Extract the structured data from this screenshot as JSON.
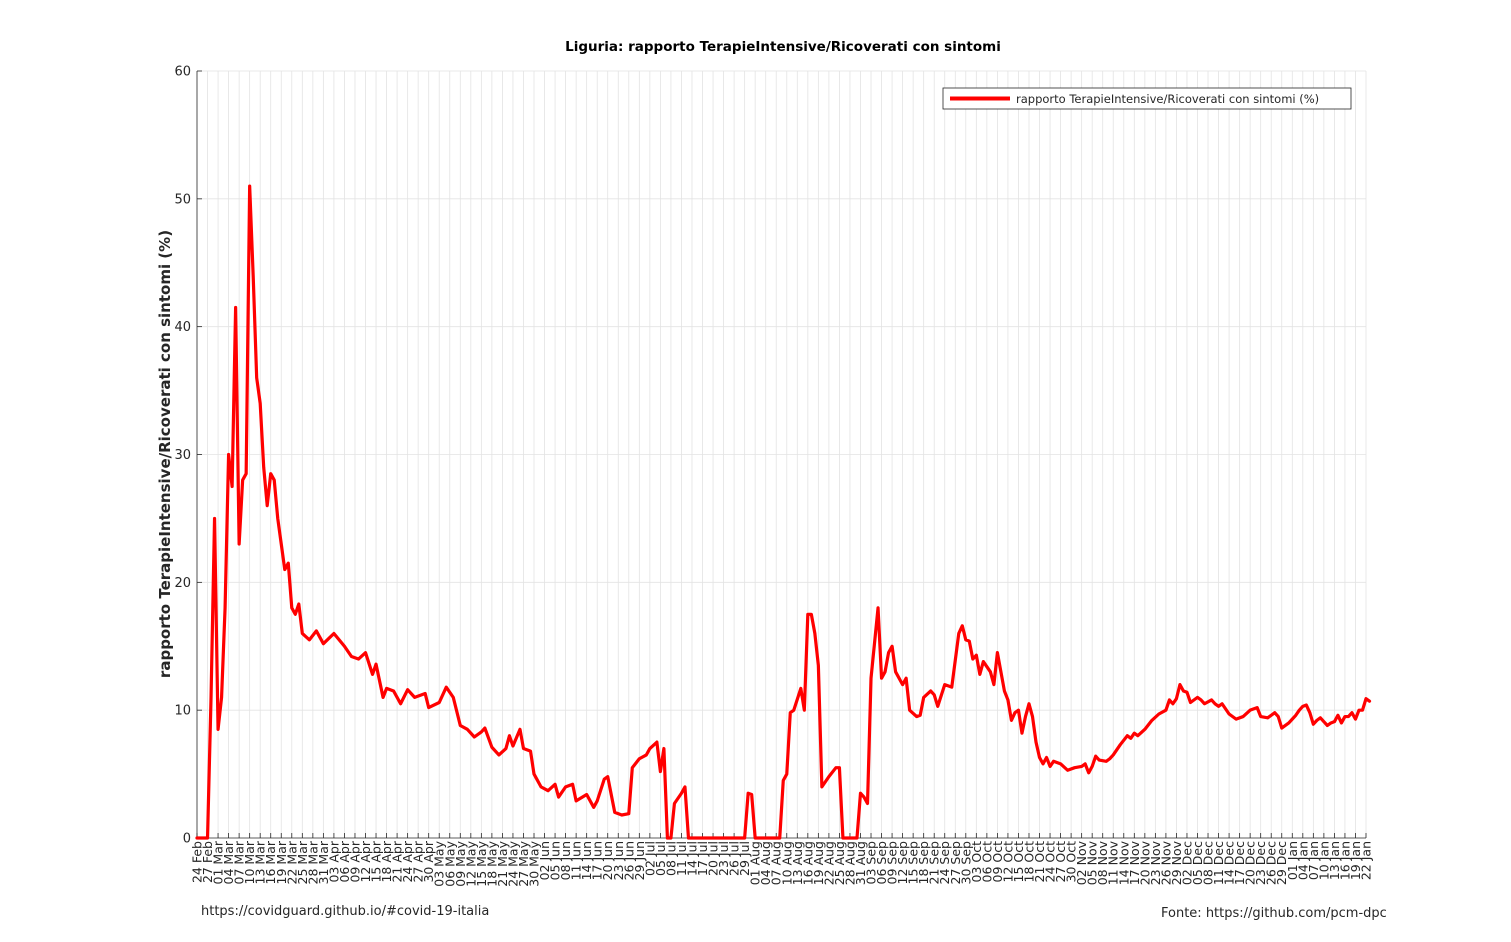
{
  "footer": {
    "left": "https://covidguard.github.io/#covid-19-italia",
    "right": "Fonte: https://github.com/pcm-dpc"
  },
  "colors": {
    "series": "#ff0000",
    "grid": "#e3e3e3",
    "axis": "#262626"
  },
  "chart_data": {
    "type": "line",
    "title": "Liguria: rapporto TerapieIntensive/Ricoverati con sintomi",
    "xlabel": "",
    "ylabel": "rapporto TerapieIntensive/Ricoverati con sintomi (%)",
    "ylim": [
      0,
      60
    ],
    "yticks": [
      0,
      10,
      20,
      30,
      40,
      50,
      60
    ],
    "grid": true,
    "legend_position": "top-right",
    "x_range": [
      "2020-02-24",
      "2021-01-22"
    ],
    "xtick_labels": [
      "24 Feb",
      "27 Feb",
      "01 Mar",
      "04 Mar",
      "07 Mar",
      "10 Mar",
      "13 Mar",
      "16 Mar",
      "19 Mar",
      "22 Mar",
      "25 Mar",
      "28 Mar",
      "31 Mar",
      "03 Apr",
      "06 Apr",
      "09 Apr",
      "12 Apr",
      "15 Apr",
      "18 Apr",
      "21 Apr",
      "24 Apr",
      "27 Apr",
      "30 Apr",
      "03 May",
      "06 May",
      "09 May",
      "12 May",
      "15 May",
      "18 May",
      "21 May",
      "24 May",
      "27 May",
      "30 May",
      "02 Jun",
      "05 Jun",
      "08 Jun",
      "11 Jun",
      "14 Jun",
      "17 Jun",
      "20 Jun",
      "23 Jun",
      "26 Jun",
      "29 Jun",
      "02 Jul",
      "05 Jul",
      "08 Jul",
      "11 Jul",
      "14 Jul",
      "17 Jul",
      "20 Jul",
      "23 Jul",
      "26 Jul",
      "29 Jul",
      "01 Aug",
      "04 Aug",
      "07 Aug",
      "10 Aug",
      "13 Aug",
      "16 Aug",
      "19 Aug",
      "22 Aug",
      "25 Aug",
      "28 Aug",
      "31 Aug",
      "03 Sep",
      "06 Sep",
      "09 Sep",
      "12 Sep",
      "15 Sep",
      "18 Sep",
      "21 Sep",
      "24 Sep",
      "27 Sep",
      "30 Sep",
      "03 Oct",
      "06 Oct",
      "09 Oct",
      "12 Oct",
      "15 Oct",
      "18 Oct",
      "21 Oct",
      "24 Oct",
      "27 Oct",
      "30 Oct",
      "02 Nov",
      "05 Nov",
      "08 Nov",
      "11 Nov",
      "14 Nov",
      "17 Nov",
      "20 Nov",
      "23 Nov",
      "26 Nov",
      "29 Nov",
      "02 Dec",
      "05 Dec",
      "08 Dec",
      "11 Dec",
      "14 Dec",
      "17 Dec",
      "20 Dec",
      "23 Dec",
      "26 Dec",
      "29 Dec",
      "01 Jan",
      "04 Jan",
      "07 Jan",
      "10 Jan",
      "13 Jan",
      "16 Jan",
      "19 Jan",
      "22 Jan"
    ],
    "series": [
      {
        "name": "rapporto TerapieIntensive/Ricoverati con sintomi (%)",
        "color": "#ff0000",
        "points": [
          [
            "2020-02-24",
            0
          ],
          [
            "2020-02-27",
            0
          ],
          [
            "2020-02-28",
            11
          ],
          [
            "2020-02-29",
            25
          ],
          [
            "2020-03-01",
            8.5
          ],
          [
            "2020-03-02",
            11
          ],
          [
            "2020-03-03",
            18
          ],
          [
            "2020-03-04",
            30
          ],
          [
            "2020-03-05",
            27.5
          ],
          [
            "2020-03-06",
            41.5
          ],
          [
            "2020-03-07",
            23
          ],
          [
            "2020-03-08",
            28
          ],
          [
            "2020-03-09",
            28.5
          ],
          [
            "2020-03-10",
            51
          ],
          [
            "2020-03-11",
            44
          ],
          [
            "2020-03-12",
            36
          ],
          [
            "2020-03-13",
            34
          ],
          [
            "2020-03-14",
            29
          ],
          [
            "2020-03-15",
            26
          ],
          [
            "2020-03-16",
            28.5
          ],
          [
            "2020-03-17",
            28
          ],
          [
            "2020-03-18",
            25
          ],
          [
            "2020-03-19",
            23
          ],
          [
            "2020-03-20",
            21
          ],
          [
            "2020-03-21",
            21.5
          ],
          [
            "2020-03-22",
            18
          ],
          [
            "2020-03-23",
            17.5
          ],
          [
            "2020-03-24",
            18.3
          ],
          [
            "2020-03-25",
            16
          ],
          [
            "2020-03-27",
            15.5
          ],
          [
            "2020-03-29",
            16.2
          ],
          [
            "2020-03-31",
            15.2
          ],
          [
            "2020-04-03",
            16
          ],
          [
            "2020-04-06",
            15
          ],
          [
            "2020-04-08",
            14.2
          ],
          [
            "2020-04-10",
            14
          ],
          [
            "2020-04-12",
            14.5
          ],
          [
            "2020-04-14",
            12.8
          ],
          [
            "2020-04-15",
            13.6
          ],
          [
            "2020-04-17",
            11
          ],
          [
            "2020-04-18",
            11.7
          ],
          [
            "2020-04-20",
            11.5
          ],
          [
            "2020-04-22",
            10.5
          ],
          [
            "2020-04-24",
            11.6
          ],
          [
            "2020-04-26",
            11
          ],
          [
            "2020-04-29",
            11.3
          ],
          [
            "2020-04-30",
            10.2
          ],
          [
            "2020-05-03",
            10.6
          ],
          [
            "2020-05-05",
            11.8
          ],
          [
            "2020-05-07",
            11
          ],
          [
            "2020-05-09",
            8.8
          ],
          [
            "2020-05-11",
            8.5
          ],
          [
            "2020-05-13",
            7.9
          ],
          [
            "2020-05-15",
            8.3
          ],
          [
            "2020-05-16",
            8.6
          ],
          [
            "2020-05-18",
            7.1
          ],
          [
            "2020-05-20",
            6.5
          ],
          [
            "2020-05-22",
            7
          ],
          [
            "2020-05-23",
            8
          ],
          [
            "2020-05-24",
            7.2
          ],
          [
            "2020-05-26",
            8.5
          ],
          [
            "2020-05-27",
            7
          ],
          [
            "2020-05-29",
            6.8
          ],
          [
            "2020-05-30",
            5
          ],
          [
            "2020-06-01",
            4
          ],
          [
            "2020-06-03",
            3.7
          ],
          [
            "2020-06-05",
            4.2
          ],
          [
            "2020-06-06",
            3.2
          ],
          [
            "2020-06-08",
            4
          ],
          [
            "2020-06-10",
            4.2
          ],
          [
            "2020-06-11",
            2.9
          ],
          [
            "2020-06-14",
            3.4
          ],
          [
            "2020-06-16",
            2.4
          ],
          [
            "2020-06-17",
            2.9
          ],
          [
            "2020-06-19",
            4.6
          ],
          [
            "2020-06-20",
            4.8
          ],
          [
            "2020-06-22",
            2
          ],
          [
            "2020-06-24",
            1.8
          ],
          [
            "2020-06-26",
            1.9
          ],
          [
            "2020-06-27",
            5.5
          ],
          [
            "2020-06-29",
            6.2
          ],
          [
            "2020-07-01",
            6.5
          ],
          [
            "2020-07-02",
            7
          ],
          [
            "2020-07-04",
            7.5
          ],
          [
            "2020-07-05",
            5.2
          ],
          [
            "2020-07-06",
            7
          ],
          [
            "2020-07-07",
            0
          ],
          [
            "2020-07-08",
            0
          ],
          [
            "2020-07-09",
            2.7
          ],
          [
            "2020-07-11",
            3.5
          ],
          [
            "2020-07-12",
            4
          ],
          [
            "2020-07-13",
            0
          ],
          [
            "2020-07-29",
            0
          ],
          [
            "2020-07-30",
            3.5
          ],
          [
            "2020-07-31",
            3.4
          ],
          [
            "2020-08-01",
            0
          ],
          [
            "2020-08-08",
            0
          ],
          [
            "2020-08-09",
            4.5
          ],
          [
            "2020-08-10",
            5
          ],
          [
            "2020-08-11",
            9.8
          ],
          [
            "2020-08-12",
            10
          ],
          [
            "2020-08-14",
            11.7
          ],
          [
            "2020-08-15",
            10
          ],
          [
            "2020-08-16",
            17.5
          ],
          [
            "2020-08-17",
            17.5
          ],
          [
            "2020-08-18",
            16
          ],
          [
            "2020-08-19",
            13.5
          ],
          [
            "2020-08-20",
            4
          ],
          [
            "2020-08-22",
            4.8
          ],
          [
            "2020-08-24",
            5.5
          ],
          [
            "2020-08-25",
            5.5
          ],
          [
            "2020-08-26",
            0
          ],
          [
            "2020-08-30",
            0
          ],
          [
            "2020-08-31",
            3.5
          ],
          [
            "2020-09-01",
            3.2
          ],
          [
            "2020-09-02",
            2.7
          ],
          [
            "2020-09-03",
            12.5
          ],
          [
            "2020-09-05",
            18
          ],
          [
            "2020-09-06",
            12.5
          ],
          [
            "2020-09-07",
            13
          ],
          [
            "2020-09-08",
            14.5
          ],
          [
            "2020-09-09",
            15
          ],
          [
            "2020-09-10",
            13
          ],
          [
            "2020-09-12",
            12
          ],
          [
            "2020-09-13",
            12.5
          ],
          [
            "2020-09-14",
            10
          ],
          [
            "2020-09-16",
            9.5
          ],
          [
            "2020-09-17",
            9.6
          ],
          [
            "2020-09-18",
            11
          ],
          [
            "2020-09-20",
            11.5
          ],
          [
            "2020-09-21",
            11.2
          ],
          [
            "2020-09-22",
            10.3
          ],
          [
            "2020-09-24",
            12
          ],
          [
            "2020-09-26",
            11.8
          ],
          [
            "2020-09-28",
            16
          ],
          [
            "2020-09-29",
            16.6
          ],
          [
            "2020-09-30",
            15.5
          ],
          [
            "2020-10-01",
            15.4
          ],
          [
            "2020-10-02",
            14
          ],
          [
            "2020-10-03",
            14.3
          ],
          [
            "2020-10-04",
            12.8
          ],
          [
            "2020-10-05",
            13.8
          ],
          [
            "2020-10-07",
            13
          ],
          [
            "2020-10-08",
            12
          ],
          [
            "2020-10-09",
            14.5
          ],
          [
            "2020-10-11",
            11.5
          ],
          [
            "2020-10-12",
            10.8
          ],
          [
            "2020-10-13",
            9.2
          ],
          [
            "2020-10-14",
            9.8
          ],
          [
            "2020-10-15",
            10
          ],
          [
            "2020-10-16",
            8.2
          ],
          [
            "2020-10-17",
            9.5
          ],
          [
            "2020-10-18",
            10.5
          ],
          [
            "2020-10-19",
            9.5
          ],
          [
            "2020-10-20",
            7.5
          ],
          [
            "2020-10-21",
            6.3
          ],
          [
            "2020-10-22",
            5.8
          ],
          [
            "2020-10-23",
            6.3
          ],
          [
            "2020-10-24",
            5.6
          ],
          [
            "2020-10-25",
            6
          ],
          [
            "2020-10-27",
            5.8
          ],
          [
            "2020-10-29",
            5.3
          ],
          [
            "2020-10-31",
            5.5
          ],
          [
            "2020-11-02",
            5.6
          ],
          [
            "2020-11-03",
            5.8
          ],
          [
            "2020-11-04",
            5.1
          ],
          [
            "2020-11-05",
            5.6
          ],
          [
            "2020-11-06",
            6.4
          ],
          [
            "2020-11-07",
            6.1
          ],
          [
            "2020-11-09",
            6
          ],
          [
            "2020-11-10",
            6.2
          ],
          [
            "2020-11-11",
            6.5
          ],
          [
            "2020-11-13",
            7.3
          ],
          [
            "2020-11-15",
            8
          ],
          [
            "2020-11-16",
            7.8
          ],
          [
            "2020-11-17",
            8.2
          ],
          [
            "2020-11-18",
            8
          ],
          [
            "2020-11-20",
            8.5
          ],
          [
            "2020-11-22",
            9.2
          ],
          [
            "2020-11-24",
            9.7
          ],
          [
            "2020-11-26",
            10
          ],
          [
            "2020-11-27",
            10.8
          ],
          [
            "2020-11-28",
            10.5
          ],
          [
            "2020-11-29",
            10.9
          ],
          [
            "2020-11-30",
            12
          ],
          [
            "2020-12-01",
            11.5
          ],
          [
            "2020-12-02",
            11.4
          ],
          [
            "2020-12-03",
            10.6
          ],
          [
            "2020-12-05",
            11
          ],
          [
            "2020-12-06",
            10.8
          ],
          [
            "2020-12-07",
            10.5
          ],
          [
            "2020-12-09",
            10.8
          ],
          [
            "2020-12-10",
            10.5
          ],
          [
            "2020-12-11",
            10.3
          ],
          [
            "2020-12-12",
            10.5
          ],
          [
            "2020-12-14",
            9.7
          ],
          [
            "2020-12-16",
            9.3
          ],
          [
            "2020-12-18",
            9.5
          ],
          [
            "2020-12-20",
            10
          ],
          [
            "2020-12-22",
            10.2
          ],
          [
            "2020-12-23",
            9.5
          ],
          [
            "2020-12-25",
            9.4
          ],
          [
            "2020-12-27",
            9.8
          ],
          [
            "2020-12-28",
            9.5
          ],
          [
            "2020-12-29",
            8.6
          ],
          [
            "2020-12-31",
            9
          ],
          [
            "2021-01-01",
            9.3
          ],
          [
            "2021-01-02",
            9.6
          ],
          [
            "2021-01-03",
            10
          ],
          [
            "2021-01-04",
            10.3
          ],
          [
            "2021-01-05",
            10.4
          ],
          [
            "2021-01-06",
            9.8
          ],
          [
            "2021-01-07",
            8.9
          ],
          [
            "2021-01-08",
            9.2
          ],
          [
            "2021-01-09",
            9.4
          ],
          [
            "2021-01-10",
            9.1
          ],
          [
            "2021-01-11",
            8.8
          ],
          [
            "2021-01-12",
            9
          ],
          [
            "2021-01-13",
            9.1
          ],
          [
            "2021-01-14",
            9.6
          ],
          [
            "2021-01-15",
            9
          ],
          [
            "2021-01-16",
            9.5
          ],
          [
            "2021-01-17",
            9.5
          ],
          [
            "2021-01-18",
            9.8
          ],
          [
            "2021-01-19",
            9.3
          ],
          [
            "2021-01-20",
            10
          ],
          [
            "2021-01-21",
            10
          ],
          [
            "2021-01-22",
            10.9
          ],
          [
            "2021-01-23",
            10.7
          ]
        ]
      }
    ]
  }
}
